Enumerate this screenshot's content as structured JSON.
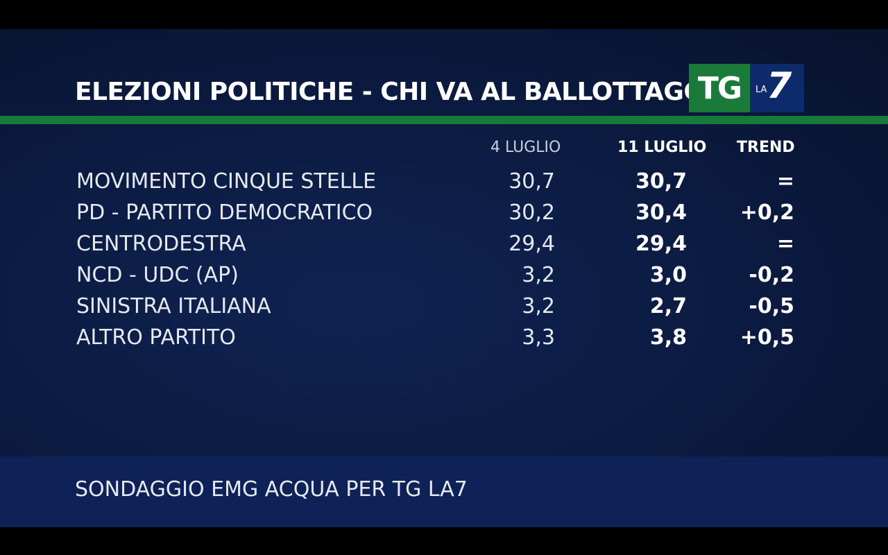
{
  "header": {
    "title": "ELEZIONI POLITICHE - CHI VA AL BALLOTTAGGIO?"
  },
  "logo": {
    "tg": "TG",
    "la": "LA",
    "seven": "7"
  },
  "columns": {
    "c1": "4 LUGLIO",
    "c2": "11 LUGLIO",
    "c3": "TREND"
  },
  "rows": [
    {
      "name": "MOVIMENTO CINQUE STELLE",
      "v1": "30,7",
      "v2": "30,7",
      "trend": "="
    },
    {
      "name": "PD - PARTITO DEMOCRATICO",
      "v1": "30,2",
      "v2": "30,4",
      "trend": "+0,2"
    },
    {
      "name": "CENTRODESTRA",
      "v1": "29,4",
      "v2": "29,4",
      "trend": "="
    },
    {
      "name": "NCD - UDC (AP)",
      "v1": "3,2",
      "v2": "3,0",
      "trend": "-0,2"
    },
    {
      "name": "SINISTRA ITALIANA",
      "v1": "3,2",
      "v2": "2,7",
      "trend": "-0,5"
    },
    {
      "name": "ALTRO PARTITO",
      "v1": "3,3",
      "v2": "3,8",
      "trend": "+0,5"
    }
  ],
  "footer": {
    "source": "SONDAGGIO EMG ACQUA PER TG LA7"
  },
  "colors": {
    "background": "#0b1a3f",
    "accent_green": "#177a3a",
    "logo_blue": "#0d2a6b"
  }
}
